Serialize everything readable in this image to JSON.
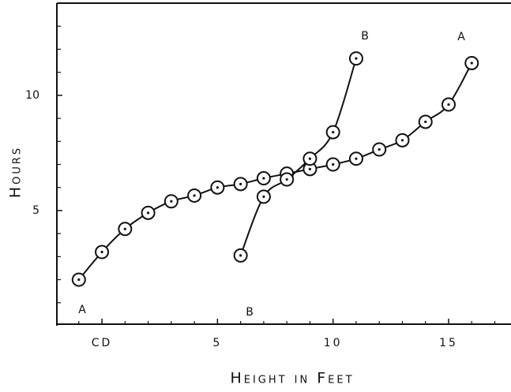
{
  "chart_data": {
    "type": "line",
    "x_label": "Height in Feet",
    "y_label": "Hours",
    "xlim": [
      -1.95,
      17.7
    ],
    "ylim": [
      0,
      14
    ],
    "xticks": [
      {
        "value": 0,
        "label": "CD"
      },
      5,
      10,
      15
    ],
    "xticks_minor": [
      -1,
      1,
      2,
      3,
      4,
      6,
      7,
      8,
      9,
      11,
      12,
      13,
      14,
      16,
      17
    ],
    "yticks": [
      5,
      10
    ],
    "yticks_minor": [
      1,
      2,
      3,
      4,
      6,
      7,
      8,
      9,
      11,
      12,
      13
    ],
    "color": "#111111",
    "series": [
      {
        "name": "A",
        "x": [
          -1,
          0,
          1,
          2,
          3,
          4,
          5,
          6,
          7,
          8,
          9,
          10,
          11,
          12,
          13,
          14,
          15,
          16
        ],
        "values": [
          2.0,
          3.2,
          4.2,
          4.9,
          5.4,
          5.65,
          6.0,
          6.15,
          6.4,
          6.6,
          6.8,
          7.0,
          7.25,
          7.65,
          8.05,
          8.85,
          9.6,
          11.4
        ]
      },
      {
        "name": "B",
        "x": [
          6,
          7,
          8,
          9,
          10,
          11
        ],
        "values": [
          3.05,
          5.6,
          6.35,
          7.25,
          8.4,
          11.6
        ]
      }
    ],
    "annotations": [
      "A",
      "A",
      "B",
      "B"
    ]
  }
}
